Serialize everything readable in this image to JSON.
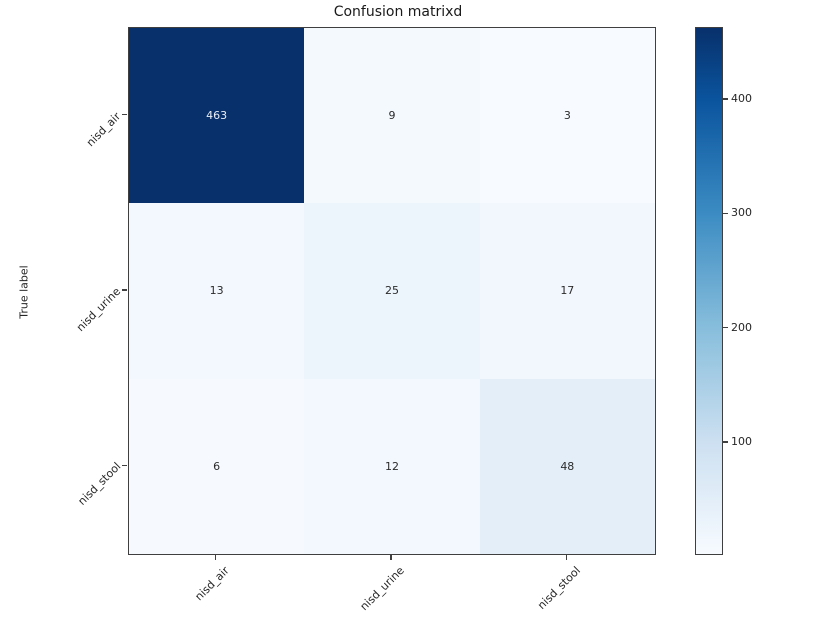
{
  "figure": {
    "background": "#ffffff",
    "text_color": "#262626"
  },
  "chart_data": {
    "type": "heatmap",
    "title": "Confusion matrixd",
    "xlabel": "",
    "ylabel": "True label",
    "x_categories": [
      "nisd_air",
      "nisd_urine",
      "nisd_stool"
    ],
    "y_categories": [
      "nisd_air",
      "nisd_urine",
      "nisd_stool"
    ],
    "matrix": [
      [
        463,
        9,
        3
      ],
      [
        13,
        25,
        17
      ],
      [
        6,
        12,
        48
      ]
    ],
    "colormap": "Blues",
    "vmin": 3,
    "vmax": 463,
    "grid": false,
    "tick_rotation_deg": 45,
    "cell_colors": [
      [
        "#08306b",
        "#f4f9fe",
        "#f7fbff"
      ],
      [
        "#f3f8fe",
        "#edf5fc",
        "#f1f7fd"
      ],
      [
        "#f6faff",
        "#f3f8fe",
        "#e3eef9"
      ]
    ],
    "dark_cell_text_color": "#e9eef6",
    "light_cell_text_color": "#2b2b2b",
    "colorbar": {
      "position": "right",
      "ticks": [
        100,
        200,
        300,
        400
      ],
      "gradient_stops": [
        [
          "0%",
          "#08306b"
        ],
        [
          "13.7%",
          "#0a549e"
        ],
        [
          "35.4%",
          "#3c8cc3"
        ],
        [
          "57.2%",
          "#88bedc"
        ],
        [
          "78.9%",
          "#cde0f1"
        ],
        [
          "100%",
          "#f7fbff"
        ]
      ]
    }
  }
}
